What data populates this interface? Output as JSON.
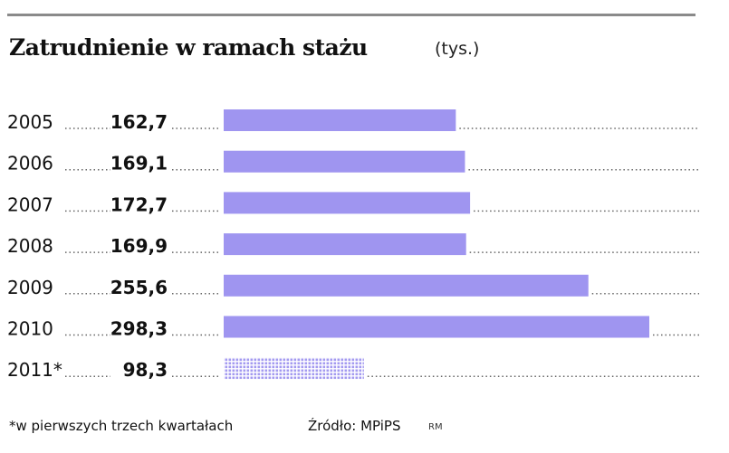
{
  "title": "Zatrudnienie w ramach stażu",
  "unit": "(tys.)",
  "footnote": "*w pierwszych trzech kwartałach",
  "source": "Źródło: MPiPS",
  "initials": "RM",
  "colors": {
    "bar": "#9f95f0",
    "bar_partial": "#b3aaf2",
    "rule": "#8a8a8a"
  },
  "chart_data": {
    "type": "bar",
    "orientation": "horizontal",
    "categories": [
      "2005",
      "2006",
      "2007",
      "2008",
      "2009",
      "2010",
      "2011*"
    ],
    "values": [
      162.7,
      169.1,
      172.7,
      169.9,
      255.6,
      298.3,
      98.3
    ],
    "value_labels": [
      "162,7",
      "169,1",
      "172,7",
      "169,9",
      "255,6",
      "298,3",
      "98,3"
    ],
    "partial_categories": [
      "2011*"
    ],
    "title": "Zatrudnienie w ramach stażu",
    "xlabel": "",
    "ylabel": "",
    "xlim": [
      0,
      298.3
    ],
    "grid": false,
    "legend": "none"
  }
}
